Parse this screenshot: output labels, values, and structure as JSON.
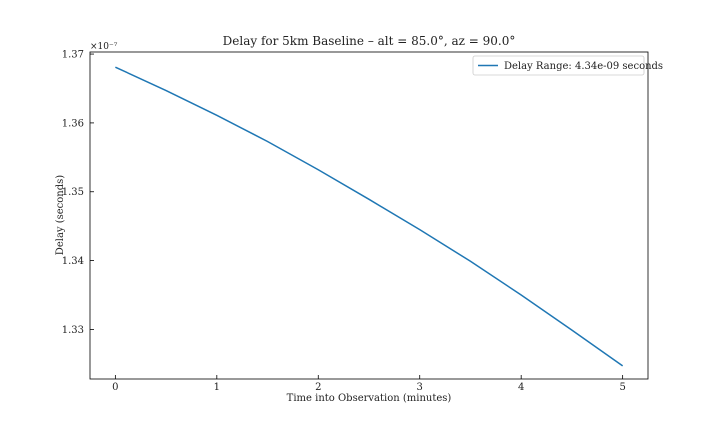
{
  "chart_data": {
    "type": "line",
    "title": "Delay for 5km Baseline – alt = 85.0°, az = 90.0°",
    "xlabel": "Time into Observation (minutes)",
    "ylabel": "Delay (seconds)",
    "offset_label": "×10⁻⁷",
    "xlim": [
      -0.25,
      5.25
    ],
    "ylim": [
      1.3228,
      1.3703
    ],
    "xticks": [
      0,
      1,
      2,
      3,
      4,
      5
    ],
    "yticks": [
      1.33,
      1.34,
      1.35,
      1.36,
      1.37
    ],
    "xtick_labels": [
      "0",
      "1",
      "2",
      "3",
      "4",
      "5"
    ],
    "ytick_labels": [
      "1.33",
      "1.34",
      "1.35",
      "1.36",
      "1.37"
    ],
    "legend_position": "top-right",
    "series": [
      {
        "name": "Delay Range: 4.34e-09 seconds",
        "color": "#1f77b4",
        "x": [
          0,
          0.5,
          1,
          1.5,
          2,
          2.5,
          3,
          3.5,
          4,
          4.5,
          5
        ],
        "values": [
          1.3681,
          1.3647,
          1.3611,
          1.3573,
          1.3532,
          1.3489,
          1.3445,
          1.3399,
          1.335,
          1.3299,
          1.3247
        ]
      }
    ]
  }
}
